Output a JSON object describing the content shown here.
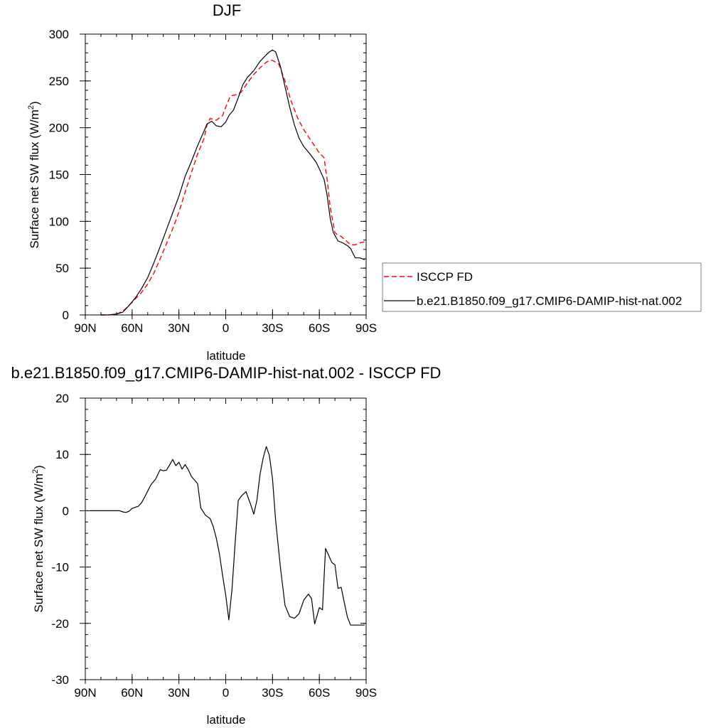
{
  "colors": {
    "obs": "#ff0000",
    "model": "#000000",
    "axis": "#000000"
  },
  "chart_data": [
    {
      "type": "line",
      "title": "DJF",
      "xlabel": "latitude",
      "ylabel": "Surface net SW flux (W/m",
      "ylabel_sup": "2",
      "ylabel_tail": ")",
      "xlim": [
        -90,
        90
      ],
      "ylim": [
        0,
        300
      ],
      "xticks": [
        -90,
        -60,
        -30,
        0,
        30,
        60,
        90
      ],
      "xtick_labels": [
        "90N",
        "60N",
        "30N",
        "0",
        "30S",
        "60S",
        "90S"
      ],
      "yticks": [
        0,
        50,
        100,
        150,
        200,
        250,
        300
      ],
      "ytick_labels": [
        "0",
        "50",
        "100",
        "150",
        "200",
        "250",
        "300"
      ],
      "grid": false,
      "legend": {
        "placement": "right",
        "entries": [
          "ISCCP FD",
          "b.e21.B1850.f09_g17.CMIP6-DAMIP-hist-nat.002"
        ]
      },
      "series": [
        {
          "name": "ISCCP FD",
          "style": "dashed",
          "color": "#ff0000",
          "x": [
            -80,
            -75,
            -70,
            -66,
            -62,
            -58,
            -54,
            -50,
            -46,
            -42,
            -38,
            -34,
            -30,
            -26,
            -22,
            -18,
            -14,
            -12,
            -10,
            -6,
            -2,
            0,
            3,
            6,
            10,
            14,
            18,
            22,
            26,
            28,
            30,
            34,
            38,
            42,
            46,
            50,
            54,
            58,
            60,
            63,
            65,
            67,
            70,
            72,
            74,
            76,
            78,
            80,
            83,
            86,
            89
          ],
          "y": [
            0,
            0,
            1,
            4,
            10,
            17,
            24,
            33,
            45,
            60,
            76,
            92,
            110,
            131,
            152,
            172,
            188,
            203,
            210,
            208,
            213,
            222,
            234,
            235,
            238,
            248,
            257,
            264,
            270,
            272,
            272,
            268,
            250,
            228,
            211,
            198,
            188,
            178,
            173,
            168,
            145,
            115,
            88,
            85,
            84,
            81,
            78,
            75,
            75,
            77,
            78
          ]
        },
        {
          "name": "b.e21.B1850.f09_g17.CMIP6-DAMIP-hist-nat.002",
          "style": "solid",
          "color": "#000000",
          "x": [
            -80,
            -75,
            -70,
            -66,
            -62,
            -58,
            -54,
            -50,
            -46,
            -42,
            -38,
            -34,
            -30,
            -26,
            -22,
            -18,
            -14,
            -12,
            -9,
            -6,
            -3,
            0,
            2,
            5,
            8,
            11,
            14,
            18,
            22,
            26,
            28,
            30,
            32,
            35,
            38,
            41,
            44,
            47,
            50,
            54,
            58,
            60,
            63,
            65,
            67,
            69,
            72,
            75,
            78,
            80,
            83,
            86,
            89
          ],
          "y": [
            0,
            0,
            1,
            3,
            10,
            18,
            28,
            40,
            56,
            73,
            91,
            109,
            127,
            148,
            164,
            181,
            196,
            204,
            207,
            202,
            201,
            206,
            213,
            219,
            232,
            246,
            254,
            261,
            271,
            278,
            281,
            283,
            281,
            266,
            244,
            222,
            203,
            189,
            180,
            172,
            163,
            156,
            145,
            128,
            103,
            88,
            79,
            77,
            74,
            71,
            61,
            61,
            59
          ]
        }
      ]
    },
    {
      "type": "line",
      "title": "b.e21.B1850.f09_g17.CMIP6-DAMIP-hist-nat.002 - ISCCP FD",
      "xlabel": "latitude",
      "ylabel": "Surface net SW flux (W/m",
      "ylabel_sup": "2",
      "ylabel_tail": ")",
      "xlim": [
        -90,
        90
      ],
      "ylim": [
        -30,
        20
      ],
      "xticks": [
        -90,
        -60,
        -30,
        0,
        30,
        60,
        90
      ],
      "xtick_labels": [
        "90N",
        "60N",
        "30N",
        "0",
        "30S",
        "60S",
        "90S"
      ],
      "yticks": [
        -30,
        -20,
        -10,
        0,
        10,
        20
      ],
      "ytick_labels": [
        "-30",
        "-20",
        "-10",
        "0",
        "10",
        "20"
      ],
      "grid": false,
      "series": [
        {
          "style": "solid",
          "color": "#000000",
          "x": [
            -87,
            -82,
            -78,
            -74,
            -71,
            -68,
            -66,
            -64,
            -62,
            -60,
            -58,
            -56,
            -54,
            -52,
            -50,
            -48,
            -45,
            -42,
            -40,
            -38,
            -36,
            -34,
            -32,
            -30,
            -28,
            -26,
            -24,
            -22,
            -18,
            -16,
            -13,
            -10,
            -8,
            -6,
            -4,
            -2,
            0,
            2,
            4,
            6,
            8,
            10,
            13,
            16,
            18,
            20,
            22,
            24,
            26,
            28,
            30,
            32,
            35,
            38,
            41,
            44,
            47,
            50,
            53,
            55,
            57,
            60,
            62,
            64,
            66,
            68,
            70,
            72,
            74,
            76,
            78,
            80,
            82,
            84,
            86,
            89
          ],
          "y": [
            0,
            0,
            0,
            0,
            0,
            0,
            -0.2,
            -0.3,
            -0.1,
            0.4,
            0.6,
            0.8,
            1.4,
            2.4,
            3.5,
            4.6,
            5.6,
            7.3,
            7.1,
            7.2,
            8.1,
            9.1,
            8.0,
            8.6,
            7.4,
            8.2,
            7.3,
            6.1,
            4.8,
            0.5,
            -0.8,
            -1.4,
            -2.8,
            -4.9,
            -7.7,
            -11.5,
            -15.0,
            -19.4,
            -14.0,
            -5.8,
            1.8,
            2.6,
            3.4,
            1.1,
            -0.6,
            1.9,
            6.5,
            9.4,
            11.4,
            9.8,
            5.7,
            -1.7,
            -9.9,
            -16.8,
            -18.8,
            -19.1,
            -18.3,
            -15.9,
            -14.8,
            -15.6,
            -20.1,
            -17.2,
            -17.6,
            -6.7,
            -7.9,
            -9.2,
            -9.6,
            -13.8,
            -13.6,
            -16.3,
            -18.9,
            -20.3,
            -20.3,
            -20.3,
            -20.3,
            -20.3
          ]
        }
      ]
    }
  ]
}
